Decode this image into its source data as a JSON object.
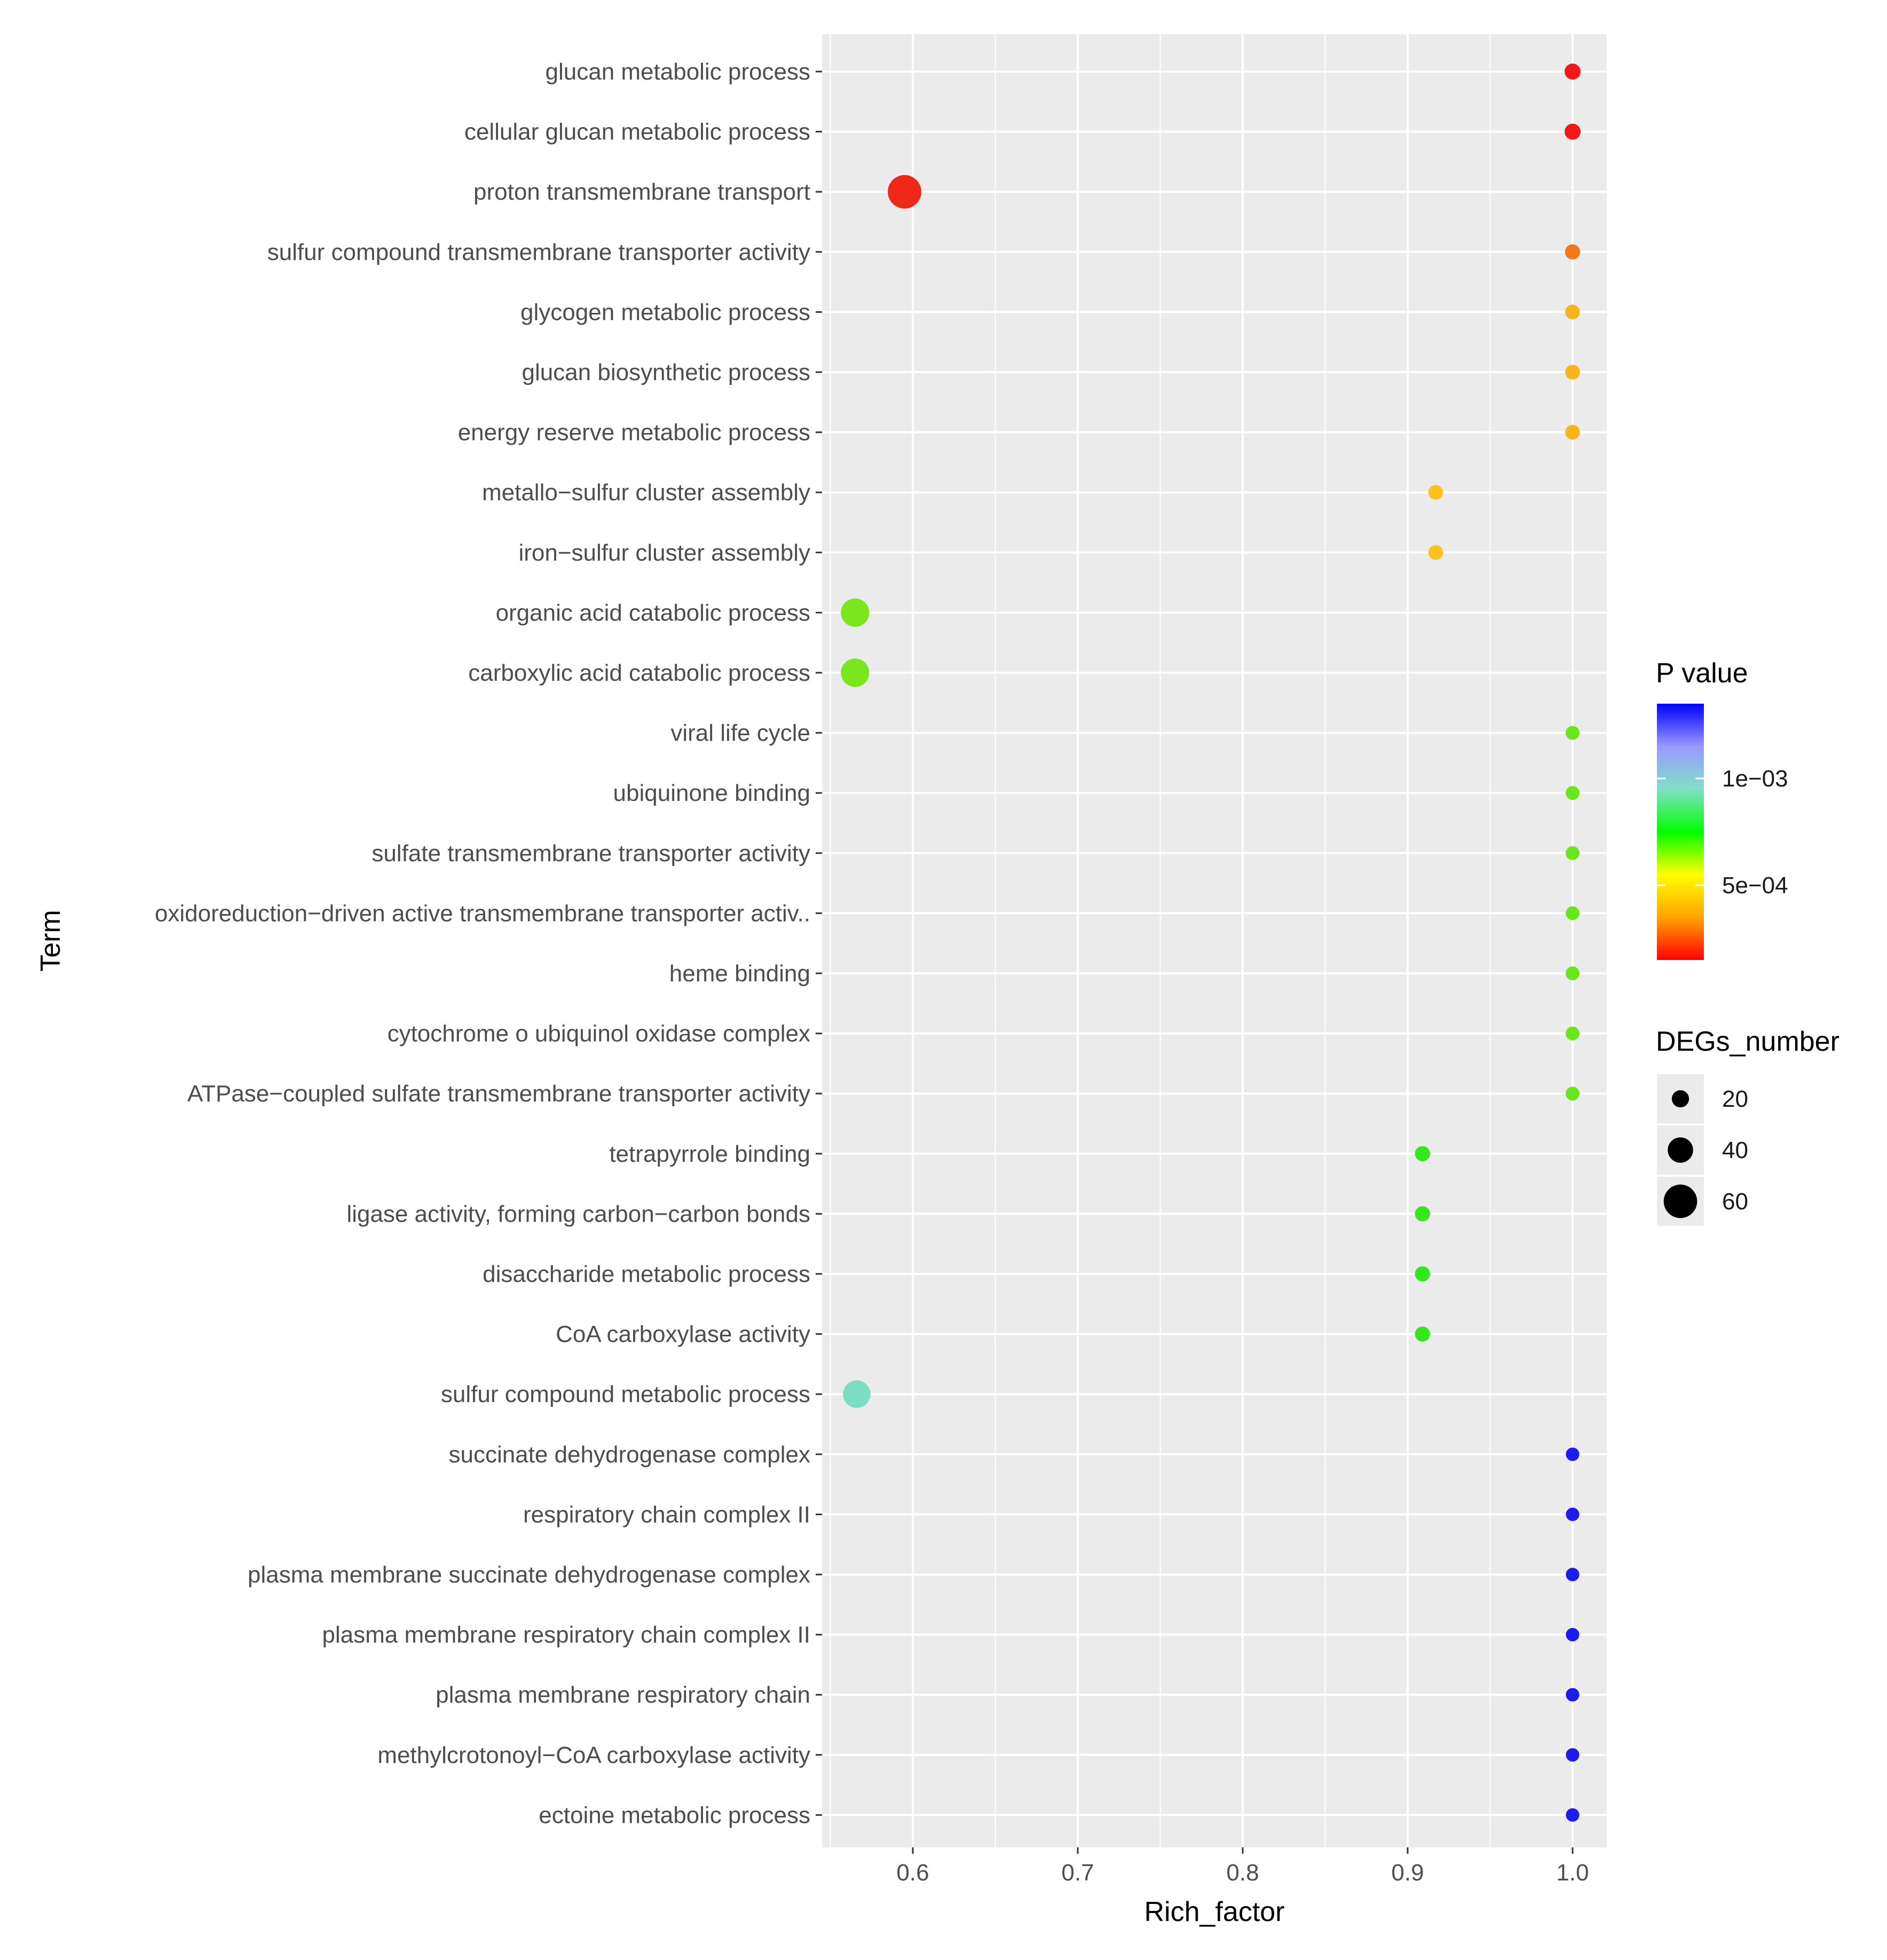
{
  "chart_data": {
    "type": "scatter",
    "title": "",
    "xlabel": "Rich_factor",
    "ylabel": "Term",
    "xlim": [
      0.55,
      1.02
    ],
    "xticks": [
      "0.6",
      "0.7",
      "0.8",
      "0.9",
      "1.0"
    ],
    "xtick_values": [
      0.6,
      0.7,
      0.8,
      0.9,
      1.0
    ],
    "grid": true,
    "points": [
      {
        "term": "glucan metabolic process",
        "rich_factor": 1.0,
        "degs_number": 15,
        "color": "#f01818"
      },
      {
        "term": "cellular glucan metabolic process",
        "rich_factor": 1.0,
        "degs_number": 15,
        "color": "#f01818"
      },
      {
        "term": "proton transmembrane transport",
        "rich_factor": 0.595,
        "degs_number": 56,
        "color": "#f02818"
      },
      {
        "term": "sulfur compound transmembrane transporter activity",
        "rich_factor": 1.0,
        "degs_number": 13,
        "color": "#f57818"
      },
      {
        "term": "glycogen metabolic process",
        "rich_factor": 1.0,
        "degs_number": 12,
        "color": "#f9b41c"
      },
      {
        "term": "glucan biosynthetic process",
        "rich_factor": 1.0,
        "degs_number": 12,
        "color": "#f9b41c"
      },
      {
        "term": "energy reserve metabolic process",
        "rich_factor": 1.0,
        "degs_number": 12,
        "color": "#f9b41c"
      },
      {
        "term": "metallo−sulfur cluster assembly",
        "rich_factor": 0.917,
        "degs_number": 12,
        "color": "#fac21c"
      },
      {
        "term": "iron−sulfur cluster assembly",
        "rich_factor": 0.917,
        "degs_number": 12,
        "color": "#fac21c"
      },
      {
        "term": "organic acid catabolic process",
        "rich_factor": 0.565,
        "degs_number": 44,
        "color": "#7ae61c"
      },
      {
        "term": "carboxylic acid catabolic process",
        "rich_factor": 0.565,
        "degs_number": 44,
        "color": "#7ae61c"
      },
      {
        "term": "viral life cycle",
        "rich_factor": 1.0,
        "degs_number": 10,
        "color": "#66e81c"
      },
      {
        "term": "ubiquinone binding",
        "rich_factor": 1.0,
        "degs_number": 10,
        "color": "#66e81c"
      },
      {
        "term": "sulfate transmembrane transporter activity",
        "rich_factor": 1.0,
        "degs_number": 10,
        "color": "#66e81c"
      },
      {
        "term": "oxidoreduction−driven active transmembrane transporter activ..",
        "rich_factor": 1.0,
        "degs_number": 10,
        "color": "#66e81c"
      },
      {
        "term": "heme binding",
        "rich_factor": 1.0,
        "degs_number": 10,
        "color": "#66e81c"
      },
      {
        "term": "cytochrome o ubiquinol oxidase complex",
        "rich_factor": 1.0,
        "degs_number": 10,
        "color": "#66e81c"
      },
      {
        "term": "ATPase−coupled sulfate transmembrane transporter activity",
        "rich_factor": 1.0,
        "degs_number": 10,
        "color": "#66e81c"
      },
      {
        "term": "tetrapyrrole binding",
        "rich_factor": 0.909,
        "degs_number": 13,
        "color": "#30e81c"
      },
      {
        "term": "ligase activity, forming carbon−carbon bonds",
        "rich_factor": 0.909,
        "degs_number": 13,
        "color": "#30e81c"
      },
      {
        "term": "disaccharide metabolic process",
        "rich_factor": 0.909,
        "degs_number": 13,
        "color": "#30e81c"
      },
      {
        "term": "CoA carboxylase activity",
        "rich_factor": 0.909,
        "degs_number": 13,
        "color": "#30e81c"
      },
      {
        "term": "sulfur compound metabolic process",
        "rich_factor": 0.566,
        "degs_number": 42,
        "color": "#7dddc2"
      },
      {
        "term": "succinate dehydrogenase complex",
        "rich_factor": 1.0,
        "degs_number": 9,
        "color": "#1c1cf0"
      },
      {
        "term": "respiratory chain complex II",
        "rich_factor": 1.0,
        "degs_number": 9,
        "color": "#1c1cf0"
      },
      {
        "term": "plasma membrane succinate dehydrogenase complex",
        "rich_factor": 1.0,
        "degs_number": 9,
        "color": "#1c1cf0"
      },
      {
        "term": "plasma membrane respiratory chain complex II",
        "rich_factor": 1.0,
        "degs_number": 9,
        "color": "#1c1cf0"
      },
      {
        "term": "plasma membrane respiratory chain",
        "rich_factor": 1.0,
        "degs_number": 9,
        "color": "#1c1cf0"
      },
      {
        "term": "methylcrotonoyl−CoA carboxylase activity",
        "rich_factor": 1.0,
        "degs_number": 9,
        "color": "#1c1cf0"
      },
      {
        "term": "ectoine metabolic process",
        "rich_factor": 1.0,
        "degs_number": 9,
        "color": "#1c1cf0"
      }
    ],
    "color_legend": {
      "title": "P value",
      "gradient_stops": [
        "#ff0000",
        "#ffa500",
        "#ffff00",
        "#00ff00",
        "#80e0c8",
        "#9999ff",
        "#0000ff"
      ],
      "labels": [
        "1e−03",
        "5e−04"
      ],
      "label_values": [
        0.001,
        0.0005
      ],
      "range": [
        0.00015,
        0.00135
      ]
    },
    "size_legend": {
      "title": "DEGs_number",
      "labels": [
        "20",
        "40",
        "60"
      ],
      "values": [
        20,
        40,
        60
      ]
    }
  }
}
